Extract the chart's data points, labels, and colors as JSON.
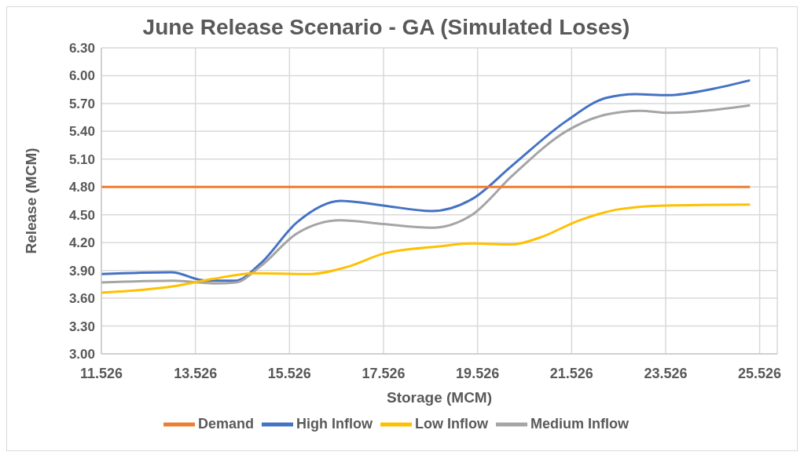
{
  "chart_data": {
    "type": "line",
    "title": "June Release Scenario - GA (Simulated Loses)",
    "xlabel": "Storage (MCM)",
    "ylabel": "Release (MCM)",
    "xlim": [
      11.526,
      25.9
    ],
    "xticks": [
      11.526,
      13.526,
      15.526,
      17.526,
      19.526,
      21.526,
      23.526,
      25.526
    ],
    "ylim": [
      3.0,
      6.3
    ],
    "yticks": [
      {
        "value": 3.0,
        "label": "3.00"
      },
      {
        "value": 3.3,
        "label": "3.30"
      },
      {
        "value": 3.6,
        "label": "3.60"
      },
      {
        "value": 3.9,
        "label": "3.90"
      },
      {
        "value": 4.2,
        "label": "4.20"
      },
      {
        "value": 4.5,
        "label": "4.50"
      },
      {
        "value": 4.8,
        "label": "4.80"
      },
      {
        "value": 5.1,
        "label": "5.10"
      },
      {
        "value": 5.4,
        "label": "5.40"
      },
      {
        "value": 5.7,
        "label": "5.70"
      },
      {
        "value": 6.0,
        "label": "6.00"
      },
      {
        "value": 6.3,
        "label": "6.30"
      }
    ],
    "grid": true,
    "legend": "bottom",
    "marker": "none",
    "line_style": "solid",
    "series": [
      {
        "name": "High Inflow",
        "color": "#4472c4",
        "x": [
          11.526,
          13.01,
          13.75,
          14.38,
          14.9,
          15.69,
          16.61,
          17.52,
          18.55,
          19.41,
          20.26,
          21.41,
          22.26,
          22.89,
          23.57,
          24.55,
          25.32
        ],
        "values": [
          3.86,
          3.88,
          3.79,
          3.79,
          3.97,
          4.42,
          4.65,
          4.6,
          4.54,
          4.67,
          5.03,
          5.51,
          5.76,
          5.8,
          5.79,
          5.86,
          5.95
        ]
      },
      {
        "name": "Medium Inflow",
        "color": "#a5a5a5",
        "x": [
          11.526,
          13.07,
          13.92,
          14.38,
          14.9,
          15.69,
          16.61,
          17.52,
          18.55,
          19.41,
          20.26,
          21.41,
          22.26,
          22.99,
          23.57,
          25.32
        ],
        "values": [
          3.77,
          3.79,
          3.76,
          3.77,
          3.94,
          4.3,
          4.44,
          4.4,
          4.36,
          4.5,
          4.92,
          5.4,
          5.58,
          5.62,
          5.6,
          5.68
        ]
      },
      {
        "name": "Low Inflow",
        "color": "#ffc000",
        "x": [
          11.526,
          13.07,
          13.92,
          14.78,
          15.92,
          16.77,
          17.52,
          18.72,
          19.41,
          20.26,
          20.83,
          21.69,
          22.54,
          23.52,
          25.32
        ],
        "values": [
          3.66,
          3.73,
          3.81,
          3.87,
          3.86,
          3.94,
          4.08,
          4.16,
          4.19,
          4.18,
          4.25,
          4.44,
          4.56,
          4.6,
          4.61
        ]
      },
      {
        "name": "Demand",
        "color": "#ed7d31",
        "x": [
          11.526,
          25.32
        ],
        "values": [
          4.8,
          4.8
        ]
      }
    ]
  }
}
